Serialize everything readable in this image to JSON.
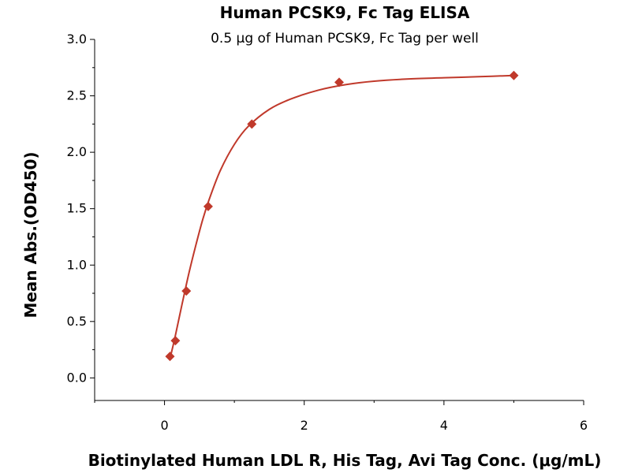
{
  "chart_data": {
    "type": "scatter",
    "title": "Human PCSK9, Fc Tag ELISA",
    "subtitle": "0.5 μg of Human PCSK9, Fc Tag per well",
    "xlabel": "Biotinylated Human LDL R, His Tag, Avi Tag Conc. (μg/mL)",
    "ylabel": "Mean Abs.(OD450)",
    "xlim": [
      -1,
      6
    ],
    "ylim": [
      -0.2,
      3.0
    ],
    "xticks": [
      "0",
      "2",
      "4",
      "6"
    ],
    "yticks": [
      "0.0",
      "0.5",
      "1.0",
      "1.5",
      "2.0",
      "2.5",
      "3.0"
    ],
    "grid": false,
    "series": [
      {
        "marker": "diamond",
        "color": "#c0392b",
        "x": [
          0.078,
          0.156,
          0.3125,
          0.625,
          1.25,
          2.5,
          5.0
        ],
        "y": [
          0.19,
          0.33,
          0.77,
          1.52,
          2.25,
          2.62,
          2.68
        ]
      }
    ],
    "fit_curve": {
      "color": "#c0392b",
      "x": [
        0.078,
        0.15,
        0.25,
        0.35,
        0.45,
        0.55,
        0.65,
        0.8,
        1.0,
        1.2,
        1.5,
        1.8,
        2.2,
        2.6,
        3.0,
        3.5,
        4.0,
        4.5,
        5.0
      ],
      "y": [
        0.17,
        0.36,
        0.65,
        0.93,
        1.18,
        1.41,
        1.6,
        1.84,
        2.07,
        2.23,
        2.38,
        2.47,
        2.55,
        2.6,
        2.63,
        2.65,
        2.66,
        2.67,
        2.68
      ]
    }
  }
}
